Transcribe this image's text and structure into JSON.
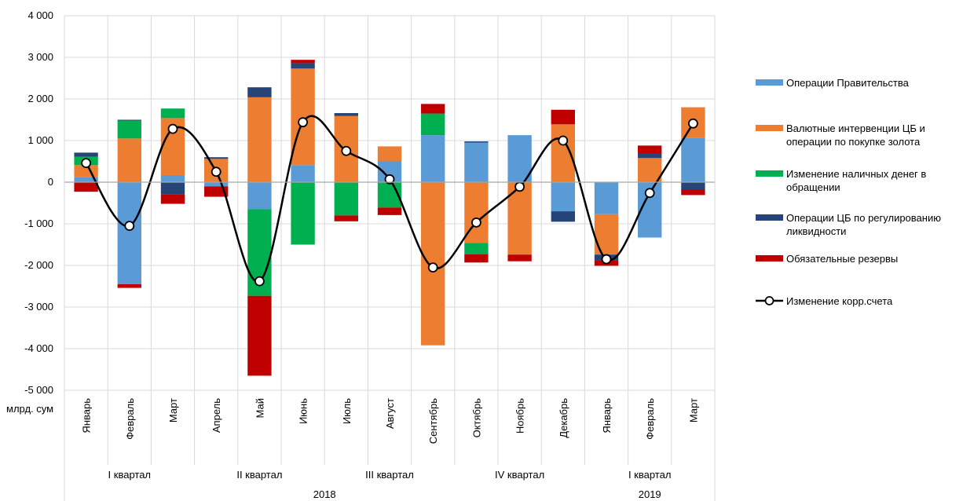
{
  "chart_data": {
    "type": "bar",
    "stacked": true,
    "unit_label": "млрд. сум",
    "categories": [
      "Январь",
      "Февраль",
      "Март",
      "Апрель",
      "Май",
      "Июнь",
      "Июль",
      "Август",
      "Сентябрь",
      "Октябрь",
      "Ноябрь",
      "Декабрь",
      "Январь",
      "Февраль",
      "Март"
    ],
    "quarters": [
      {
        "label": "I квартал",
        "count": 3
      },
      {
        "label": "II квартал",
        "count": 3
      },
      {
        "label": "III квартал",
        "count": 3
      },
      {
        "label": "IV квартал",
        "count": 3
      },
      {
        "label": "I квартал",
        "count": 3
      }
    ],
    "years": [
      {
        "label": "2018",
        "count": 12
      },
      {
        "label": "2019",
        "count": 3
      }
    ],
    "ylim": [
      -5000,
      4000
    ],
    "yticks": [
      4000,
      3000,
      2000,
      1000,
      0,
      -1000,
      -2000,
      -3000,
      -4000,
      -5000
    ],
    "ytick_labels": [
      "4 000",
      "3 000",
      "2 000",
      "1 000",
      "0",
      "-1 000",
      "-2 000",
      "-3 000",
      "-4 000",
      "-5 000"
    ],
    "grid": true,
    "legend_position": "right",
    "series": [
      {
        "name": "Операции Правительства",
        "color": "#5B9BD5",
        "values": [
          120,
          -2450,
          170,
          -100,
          -650,
          410,
          0,
          500,
          1130,
          950,
          1130,
          -700,
          -770,
          -1330,
          1060
        ]
      },
      {
        "name": "Валютные интервенции ЦБ и операции по покупке золота",
        "color": "#ED7D31",
        "values": [
          290,
          1050,
          1370,
          560,
          2040,
          2320,
          1590,
          360,
          -3920,
          -1460,
          -1740,
          1390,
          -970,
          580,
          740
        ]
      },
      {
        "name": "Изменение наличных денег в обращении",
        "color": "#00B050",
        "values": [
          200,
          430,
          230,
          0,
          -2080,
          -1500,
          -800,
          -610,
          520,
          -270,
          0,
          0,
          0,
          0,
          0
        ]
      },
      {
        "name": "Операции ЦБ по регулированию ликвидности",
        "color": "#264478",
        "values": [
          100,
          20,
          -290,
          40,
          240,
          130,
          70,
          0,
          0,
          30,
          0,
          -250,
          -130,
          100,
          -170
        ]
      },
      {
        "name": "Обязательные резервы",
        "color": "#C00000",
        "values": [
          -230,
          -90,
          -230,
          -250,
          -1920,
          80,
          -140,
          -180,
          230,
          -200,
          -160,
          350,
          -140,
          200,
          -140
        ]
      }
    ],
    "line": {
      "name": "Изменение корр.счета",
      "color": "#000000",
      "values": [
        460,
        -1050,
        1280,
        250,
        -2380,
        1440,
        750,
        70,
        -2050,
        -970,
        -110,
        1000,
        -1850,
        -260,
        1410
      ]
    }
  }
}
